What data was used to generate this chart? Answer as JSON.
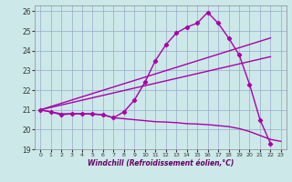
{
  "xlabel": "Windchill (Refroidissement éolien,°C)",
  "xlim": [
    -0.5,
    23.5
  ],
  "ylim": [
    19,
    26.3
  ],
  "xticks": [
    0,
    1,
    2,
    3,
    4,
    5,
    6,
    7,
    8,
    9,
    10,
    11,
    12,
    13,
    14,
    15,
    16,
    17,
    18,
    19,
    20,
    21,
    22,
    23
  ],
  "yticks": [
    19,
    20,
    21,
    22,
    23,
    24,
    25,
    26
  ],
  "bg_color": "#cce8e8",
  "line_color": "#aa00aa",
  "grid_color": "#99aacc",
  "curve_x": [
    0,
    1,
    2,
    3,
    4,
    5,
    6,
    7,
    8,
    9,
    10,
    11,
    12,
    13,
    14,
    15,
    16,
    17,
    18,
    19,
    20,
    21,
    22
  ],
  "curve_y": [
    21.0,
    20.9,
    20.75,
    20.8,
    20.8,
    20.8,
    20.75,
    20.6,
    20.9,
    21.5,
    22.4,
    23.5,
    24.3,
    24.9,
    25.2,
    25.4,
    25.95,
    25.4,
    24.65,
    23.8,
    22.3,
    20.5,
    19.3
  ],
  "line1_x": [
    0,
    22
  ],
  "line1_y": [
    21.0,
    24.65
  ],
  "line2_x": [
    0,
    22
  ],
  "line2_y": [
    21.0,
    23.7
  ],
  "decline_x": [
    0,
    1,
    2,
    3,
    4,
    5,
    6,
    7,
    8,
    9,
    10,
    11,
    12,
    13,
    14,
    15,
    16,
    17,
    18,
    19,
    20,
    21,
    22,
    23
  ],
  "decline_y": [
    21.0,
    20.9,
    20.8,
    20.8,
    20.8,
    20.78,
    20.75,
    20.6,
    20.55,
    20.5,
    20.45,
    20.4,
    20.38,
    20.35,
    20.3,
    20.28,
    20.25,
    20.2,
    20.15,
    20.05,
    19.9,
    19.7,
    19.5,
    19.4
  ]
}
